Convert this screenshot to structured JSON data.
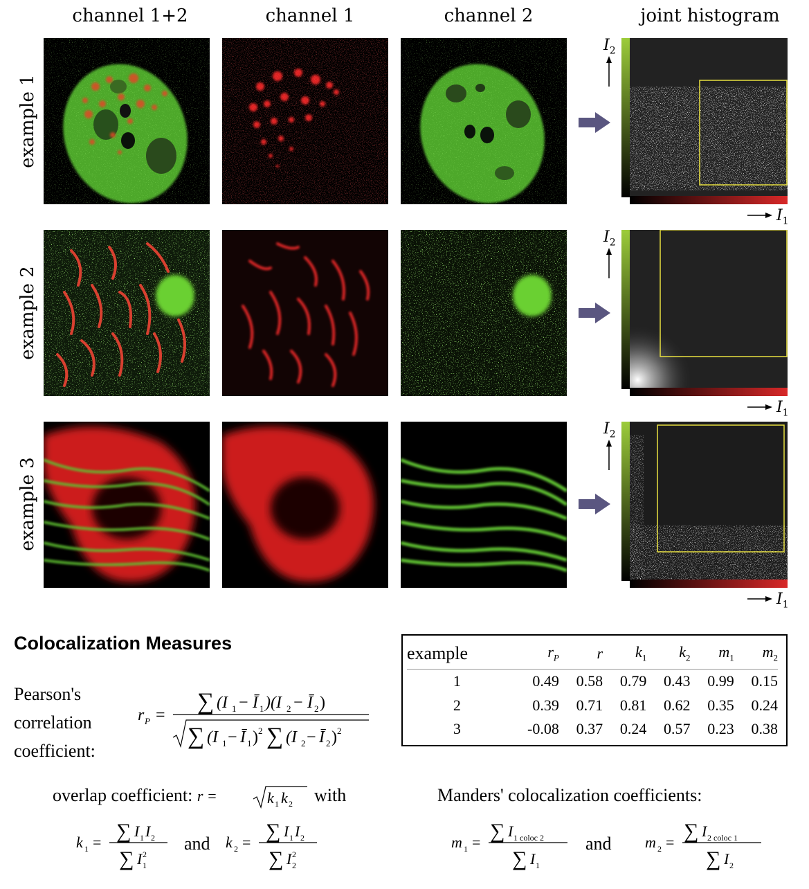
{
  "column_headers": [
    "channel 1+2",
    "channel 1",
    "channel 2",
    "joint histogram"
  ],
  "rows": [
    {
      "label": "example 1"
    },
    {
      "label": "example 2"
    },
    {
      "label": "example 3"
    }
  ],
  "axis_labels": {
    "y": "I",
    "y_sub": "2",
    "x": "I",
    "x_sub": "1"
  },
  "colors": {
    "channel1": "#e02020",
    "channel2": "#5cc02a",
    "arrow": "#5a5680",
    "threshold_box": "#e8e040"
  },
  "section_title": "Colocalization Measures",
  "pearson": {
    "label_lines": [
      "Pearson's",
      "correlation",
      "coefficient:"
    ],
    "lhs": "r",
    "lhs_sub": "P"
  },
  "overlap": {
    "text": "overlap coefficient:",
    "formula_prefix": "r =",
    "with": "with",
    "and": "and"
  },
  "manders": {
    "text": "Manders' colocalization coefficients:",
    "and": "and",
    "sub1": "1 coloc 2",
    "sub2": "2 coloc 1"
  },
  "table": {
    "headers": [
      "example",
      "r",
      "r",
      "k",
      "k",
      "m",
      "m"
    ],
    "header_subs": [
      "",
      "P",
      "",
      "1",
      "2",
      "1",
      "2"
    ],
    "rows": [
      [
        "1",
        "0.49",
        "0.58",
        "0.79",
        "0.43",
        "0.99",
        "0.15"
      ],
      [
        "2",
        "0.39",
        "0.71",
        "0.81",
        "0.62",
        "0.35",
        "0.24"
      ],
      [
        "3",
        "-0.08",
        "0.37",
        "0.24",
        "0.57",
        "0.23",
        "0.38"
      ]
    ]
  }
}
